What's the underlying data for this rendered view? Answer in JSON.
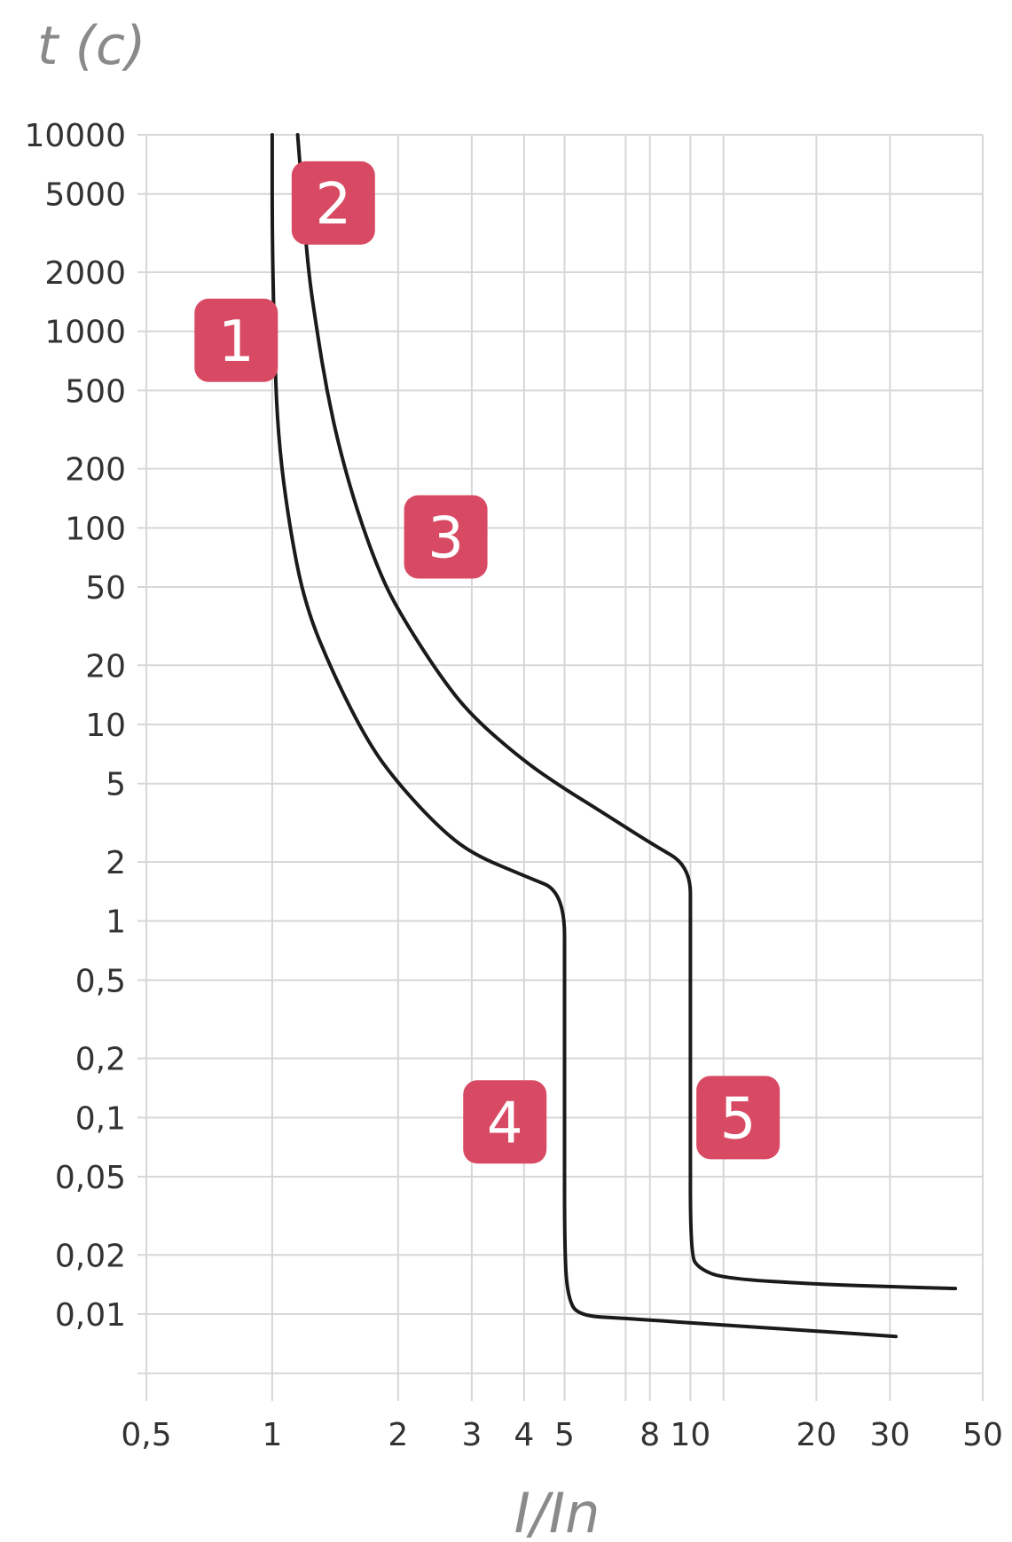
{
  "chart_data": {
    "type": "line",
    "xlabel": "I/In",
    "ylabel": "t (c)",
    "x_scale": "log",
    "y_scale": "log",
    "x_ticks": [
      {
        "v": 0.5,
        "label": "0,5"
      },
      {
        "v": 1,
        "label": "1"
      },
      {
        "v": 2,
        "label": "2"
      },
      {
        "v": 3,
        "label": "3"
      },
      {
        "v": 4,
        "label": "4"
      },
      {
        "v": 5,
        "label": "5"
      },
      {
        "v": 8,
        "label": "8"
      },
      {
        "v": 10,
        "label": "10"
      },
      {
        "v": 20,
        "label": "20"
      },
      {
        "v": 30,
        "label": "30"
      },
      {
        "v": 50,
        "label": "50"
      }
    ],
    "y_ticks": [
      {
        "v": 10000,
        "label": "10000"
      },
      {
        "v": 5000,
        "label": "5000"
      },
      {
        "v": 2000,
        "label": "2000"
      },
      {
        "v": 1000,
        "label": "1000"
      },
      {
        "v": 500,
        "label": "500"
      },
      {
        "v": 200,
        "label": "200"
      },
      {
        "v": 100,
        "label": "100"
      },
      {
        "v": 50,
        "label": "50"
      },
      {
        "v": 20,
        "label": "20"
      },
      {
        "v": 10,
        "label": "10"
      },
      {
        "v": 5,
        "label": "5"
      },
      {
        "v": 2,
        "label": "2"
      },
      {
        "v": 1,
        "label": "1"
      },
      {
        "v": 0.5,
        "label": "0,5"
      },
      {
        "v": 0.2,
        "label": "0,2"
      },
      {
        "v": 0.1,
        "label": "0,1"
      },
      {
        "v": 0.05,
        "label": "0,05"
      },
      {
        "v": 0.02,
        "label": "0,02"
      },
      {
        "v": 0.01,
        "label": "0,01"
      }
    ],
    "extra_vertical_gridlines": [
      7,
      12
    ],
    "extra_horizontal_gridline": 0.005,
    "grid": true,
    "series": [
      {
        "points": [
          [
            1.0,
            10000
          ],
          [
            1.0,
            3000
          ],
          [
            1.01,
            1000
          ],
          [
            1.03,
            300
          ],
          [
            1.1,
            100
          ],
          [
            1.2,
            40
          ],
          [
            1.4,
            18
          ],
          [
            1.7,
            8
          ],
          [
            2.0,
            5
          ],
          [
            2.5,
            3
          ],
          [
            3.0,
            2.2
          ],
          [
            4.0,
            1.7
          ],
          [
            5.0,
            1.4
          ],
          [
            5.0,
            0.5
          ],
          [
            5.0,
            0.1
          ],
          [
            5.0,
            0.02
          ],
          [
            5.1,
            0.012
          ],
          [
            5.4,
            0.0098
          ],
          [
            7.0,
            0.0095
          ],
          [
            12.0,
            0.0088
          ],
          [
            20.0,
            0.0082
          ],
          [
            31.0,
            0.0077
          ]
        ]
      },
      {
        "points": [
          [
            1.15,
            10000
          ],
          [
            1.18,
            5000
          ],
          [
            1.22,
            2000
          ],
          [
            1.28,
            1000
          ],
          [
            1.35,
            500
          ],
          [
            1.45,
            250
          ],
          [
            1.6,
            120
          ],
          [
            1.8,
            60
          ],
          [
            2.0,
            38
          ],
          [
            2.5,
            18
          ],
          [
            3.0,
            11
          ],
          [
            4.0,
            6.5
          ],
          [
            5.0,
            4.7
          ],
          [
            6.0,
            3.7
          ],
          [
            8.0,
            2.5
          ],
          [
            10.0,
            1.9
          ],
          [
            10.0,
            1.0
          ],
          [
            10.0,
            0.1
          ],
          [
            10.0,
            0.02
          ],
          [
            10.5,
            0.017
          ],
          [
            12.0,
            0.0152
          ],
          [
            20.0,
            0.0142
          ],
          [
            30.0,
            0.0138
          ],
          [
            43.0,
            0.0135
          ]
        ]
      }
    ],
    "badges": [
      {
        "label": "1",
        "x": 0.82,
        "y": 900
      },
      {
        "label": "2",
        "x": 1.4,
        "y": 4500
      },
      {
        "label": "3",
        "x": 2.6,
        "y": 90
      },
      {
        "label": "4",
        "x": 3.6,
        "y": 0.095
      },
      {
        "label": "5",
        "x": 13.0,
        "y": 0.1
      }
    ],
    "colors": {
      "curve": "#1a1a1a",
      "grid": "#d7d7d7",
      "badge": "#d84a63",
      "badge_text": "#ffffff",
      "axis_title": "#8a8a8a",
      "tick": "#333333"
    }
  }
}
